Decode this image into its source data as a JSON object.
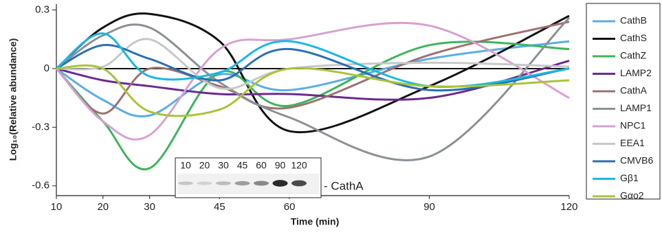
{
  "chart_data": {
    "type": "line",
    "xlabel": "Time (min)",
    "ylabel": "Log₁₀(Relative abundance)",
    "x": [
      10,
      20,
      30,
      45,
      60,
      90,
      120
    ],
    "xlim": [
      10,
      120
    ],
    "xticks": [
      10,
      20,
      30,
      45,
      60,
      90,
      120
    ],
    "ylim": [
      -0.65,
      0.33
    ],
    "yticks": [
      0.3,
      0,
      -0.3,
      -0.6
    ],
    "legend": "right",
    "series": [
      {
        "name": "CathB",
        "color": "#5aaee0",
        "values": [
          0,
          -0.16,
          -0.24,
          -0.03,
          -0.11,
          0.05,
          0.14
        ]
      },
      {
        "name": "CathS",
        "color": "#111111",
        "values": [
          0,
          0.21,
          0.28,
          0.14,
          -0.32,
          -0.09,
          0.27
        ]
      },
      {
        "name": "CathZ",
        "color": "#3cb55a",
        "values": [
          0,
          -0.27,
          -0.51,
          -0.02,
          -0.19,
          0.12,
          0.1
        ]
      },
      {
        "name": "LAMP2",
        "color": "#6a2a8e",
        "values": [
          0,
          -0.06,
          -0.09,
          -0.13,
          -0.13,
          -0.15,
          0.04
        ]
      },
      {
        "name": "CathA",
        "color": "#9d7070",
        "values": [
          0,
          -0.23,
          0,
          -0.09,
          -0.2,
          0.07,
          0.24
        ]
      },
      {
        "name": "LAMP1",
        "color": "#8a9096",
        "values": [
          0,
          0.17,
          0.21,
          -0.07,
          -0.25,
          -0.45,
          0.26
        ]
      },
      {
        "name": "NPC1",
        "color": "#d7a0d2",
        "values": [
          0,
          -0.27,
          -0.34,
          0.1,
          0.15,
          0.22,
          -0.15
        ]
      },
      {
        "name": "EEA1",
        "color": "#c8c8c8",
        "values": [
          0,
          0.01,
          0.15,
          -0.1,
          0,
          0.03,
          0.01
        ]
      },
      {
        "name": "CMVB6",
        "color": "#2a6fb0",
        "values": [
          0,
          0.12,
          0.05,
          -0.06,
          0.1,
          -0.11,
          0
        ]
      },
      {
        "name": "Gβ1",
        "color": "#1ab8e0",
        "values": [
          0,
          0.18,
          -0.04,
          -0.02,
          0.14,
          -0.09,
          0
        ]
      },
      {
        "name": "Gαo2",
        "color": "#a8c43a",
        "values": [
          0,
          0,
          -0.22,
          -0.21,
          0,
          -0.09,
          -0.06
        ]
      }
    ],
    "inset": {
      "lanes": [
        "10",
        "20",
        "30",
        "45",
        "60",
        "90",
        "120"
      ],
      "band_label": "- CathA"
    }
  }
}
